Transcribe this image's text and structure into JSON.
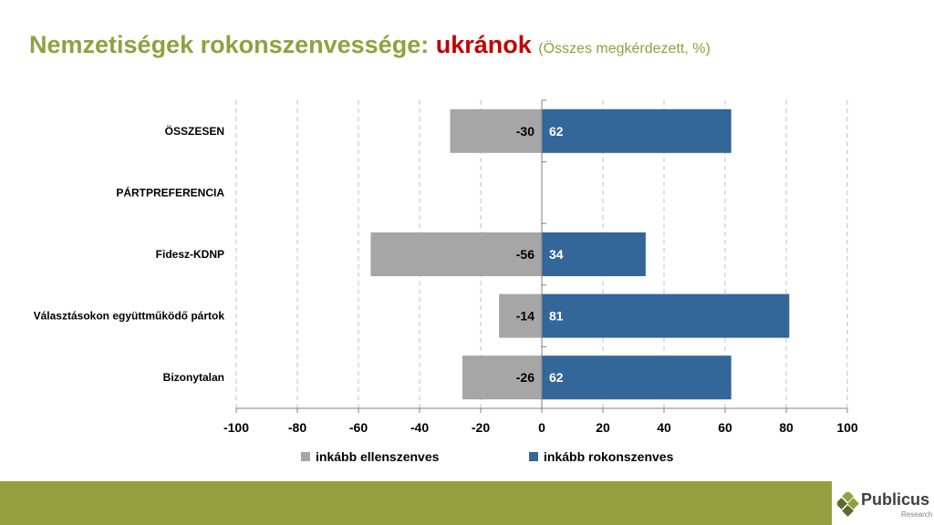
{
  "title": {
    "main": "Nemzetiségek rokonszenvessége: ",
    "accent": "ukránok",
    "sub": "(Összes megkérdezett, %)"
  },
  "chart_data": {
    "type": "bar",
    "orientation": "horizontal",
    "stacked": true,
    "categories": [
      "ÖSSZESEN",
      "PÁRTPREFERENCIA",
      "Fidesz-KDNP",
      "Választásokon együttműködő pártok",
      "Bizonytalan"
    ],
    "series": [
      {
        "name": "inkább ellenszenves",
        "values": [
          -30,
          null,
          -56,
          -14,
          -26
        ],
        "color": "#a6a6a6"
      },
      {
        "name": "inkább rokonszenves",
        "values": [
          62,
          null,
          34,
          81,
          62
        ],
        "color": "#336699"
      }
    ],
    "xlim": [
      -100,
      100
    ],
    "xticks": [
      -100,
      -80,
      -60,
      -40,
      -20,
      0,
      20,
      40,
      60,
      80,
      100
    ],
    "grid": true,
    "legend_position": "bottom"
  },
  "logo": {
    "name": "Publicus",
    "tagline": "Research"
  }
}
